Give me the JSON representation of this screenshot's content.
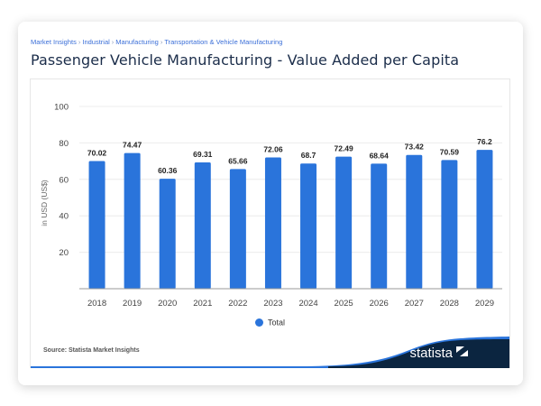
{
  "breadcrumb": [
    "Market Insights",
    "Industrial",
    "Manufacturing",
    "Transportation & Vehicle Manufacturing"
  ],
  "breadcrumb_separator": "›",
  "title": "Passenger Vehicle Manufacturing - Value Added per Capita",
  "source": "Source: Statista Market Insights",
  "logo_text": "statista",
  "colors": {
    "bar": "#2a74db",
    "title": "#1b2d4a",
    "link": "#3b6fd8",
    "footer_dark": "#0b2540"
  },
  "chart_data": {
    "type": "bar",
    "title": "Passenger Vehicle Manufacturing - Value Added per Capita",
    "xlabel": "",
    "ylabel": "in USD (US$)",
    "ylim": [
      0,
      100
    ],
    "yticks": [
      20,
      40,
      60,
      80,
      100
    ],
    "grid": true,
    "legend": {
      "position": "bottom-center",
      "entries": [
        "Total"
      ]
    },
    "categories": [
      "2018",
      "2019",
      "2020",
      "2021",
      "2022",
      "2023",
      "2024",
      "2025",
      "2026",
      "2027",
      "2028",
      "2029"
    ],
    "series": [
      {
        "name": "Total",
        "values": [
          70.02,
          74.47,
          60.36,
          69.31,
          65.66,
          72.06,
          68.7,
          72.49,
          68.64,
          73.42,
          70.59,
          76.2
        ],
        "labels": [
          "70.02",
          "74.47",
          "60.36",
          "69.31",
          "65.66",
          "72.06",
          "68.7",
          "72.49",
          "68.64",
          "73.42",
          "70.59",
          "76.2"
        ]
      }
    ]
  }
}
